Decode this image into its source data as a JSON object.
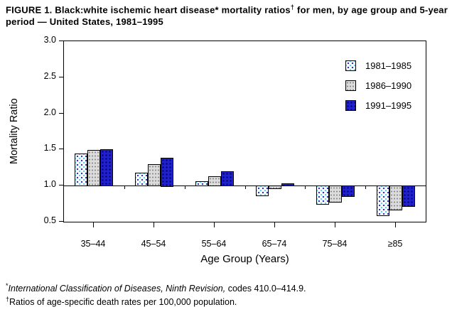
{
  "figure": {
    "title_prefix": "FIGURE 1. Black:white ischemic heart disease* mortality ratios",
    "title_dagger": "†",
    "title_suffix": " for men, by age group and 5-year period — United States, 1981–1995"
  },
  "footnotes": [
    {
      "symbol": "*",
      "italic": "International Classification of Diseases, Ninth Revision,",
      "text": " codes 410.0–414.9."
    },
    {
      "symbol": "†",
      "italic": "",
      "text": "Ratios of age-specific death rates per 100,000 population."
    }
  ],
  "chart_data": {
    "type": "bar",
    "title": "FIGURE 1. Black:white ischemic heart disease mortality ratios for men, by age group and 5-year period — United States, 1981–1995",
    "categories": [
      "35–44",
      "45–54",
      "55–64",
      "65–74",
      "75–84",
      "≥85"
    ],
    "series": [
      {
        "name": "1981–1985",
        "pattern": "blue-dots-on-white",
        "color": "#52d4ee",
        "values": [
          1.44,
          1.18,
          1.06,
          0.86,
          0.74,
          0.59
        ]
      },
      {
        "name": "1986–1990",
        "pattern": "gray-dashes",
        "color": "#dcdcdc",
        "values": [
          1.49,
          1.3,
          1.13,
          0.96,
          0.77,
          0.67
        ]
      },
      {
        "name": "1991–1995",
        "pattern": "solid-navy-dots",
        "color": "#2020cf",
        "values": [
          1.5,
          1.39,
          1.2,
          1.03,
          0.85,
          0.71
        ]
      }
    ],
    "xlabel": "Age Group (Years)",
    "ylabel": "Mortality Ratio",
    "ylim": [
      0.5,
      3.0
    ],
    "yticks": [
      "3.0",
      "2.5",
      "2.0",
      "1.5",
      "1.0",
      "0.5"
    ],
    "baseline": 1.0,
    "legend_position": "top-right-inside",
    "grid": false,
    "bar_border_color": "#000000",
    "axis_color": "#000000"
  }
}
